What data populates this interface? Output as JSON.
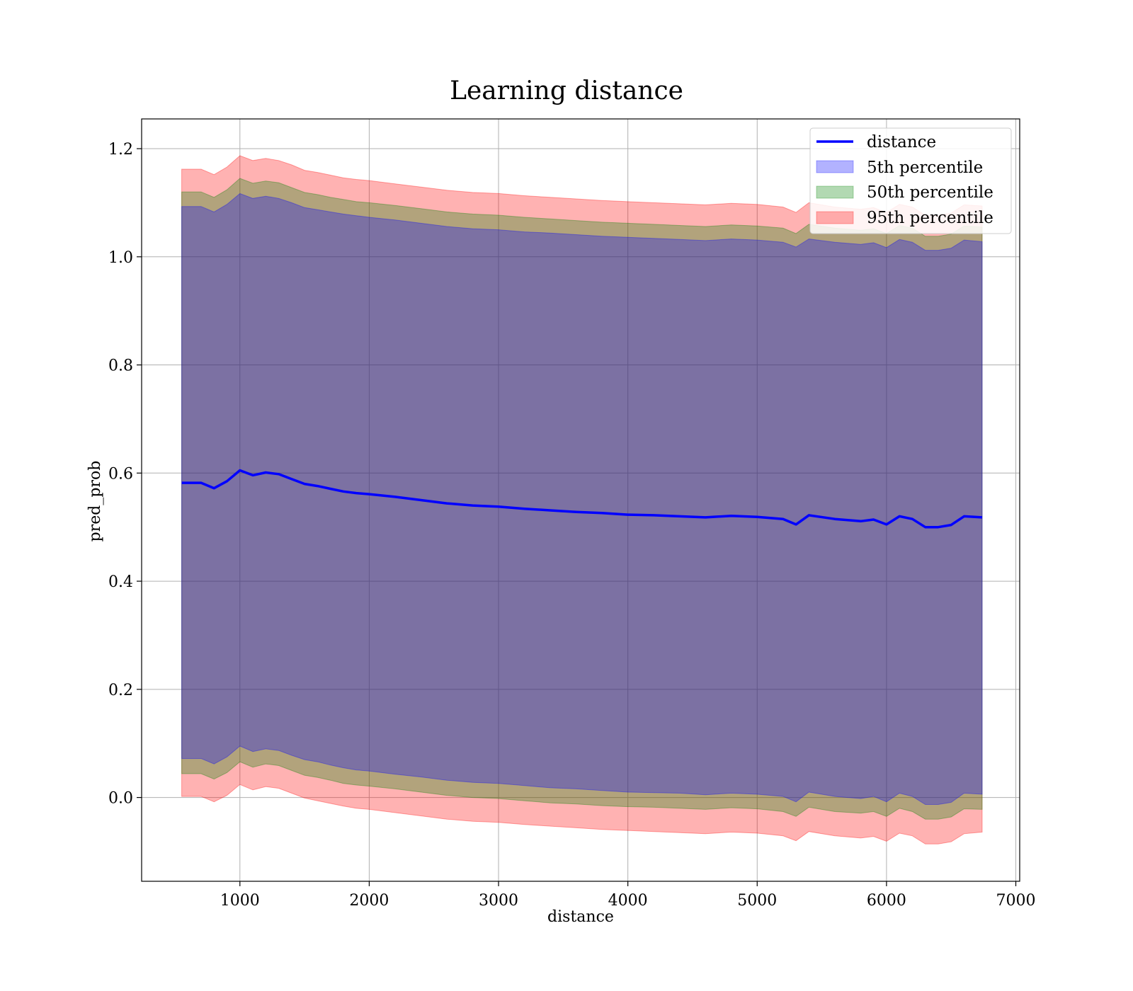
{
  "chart_data": {
    "type": "area",
    "title": "Learning distance",
    "xlabel": "distance",
    "ylabel": "pred_prob",
    "xlim": [
      240,
      7030
    ],
    "ylim": [
      -0.155,
      1.255
    ],
    "x_ticks": [
      1000,
      2000,
      3000,
      4000,
      5000,
      6000,
      7000
    ],
    "x_tick_labels": [
      "1000",
      "2000",
      "3000",
      "4000",
      "5000",
      "6000",
      "7000"
    ],
    "y_ticks": [
      0.0,
      0.2,
      0.4,
      0.6,
      0.8,
      1.0,
      1.2
    ],
    "y_tick_labels": [
      "0.0",
      "0.2",
      "0.4",
      "0.6",
      "0.8",
      "1.0",
      "1.2"
    ],
    "grid": true,
    "legend_position": "top-right",
    "x": [
      550,
      700,
      800,
      900,
      1000,
      1100,
      1200,
      1300,
      1400,
      1500,
      1600,
      1700,
      1800,
      1900,
      2000,
      2200,
      2400,
      2600,
      2800,
      3000,
      3200,
      3400,
      3600,
      3800,
      4000,
      4200,
      4400,
      4600,
      4800,
      5000,
      5200,
      5300,
      5400,
      5600,
      5800,
      5900,
      6000,
      6100,
      6200,
      6300,
      6400,
      6500,
      6600,
      6740
    ],
    "series": [
      {
        "name": "distance",
        "kind": "line",
        "color": "#0000ff",
        "values": [
          0.582,
          0.582,
          0.572,
          0.585,
          0.605,
          0.596,
          0.601,
          0.598,
          0.589,
          0.58,
          0.576,
          0.571,
          0.566,
          0.563,
          0.561,
          0.556,
          0.55,
          0.544,
          0.54,
          0.538,
          0.534,
          0.531,
          0.528,
          0.526,
          0.523,
          0.522,
          0.52,
          0.518,
          0.521,
          0.519,
          0.515,
          0.505,
          0.522,
          0.515,
          0.511,
          0.514,
          0.505,
          0.52,
          0.515,
          0.5,
          0.5,
          0.504,
          0.52,
          0.518
        ]
      },
      {
        "name": "5th percentile",
        "kind": "band",
        "color": "#0000ff",
        "upper": [
          1.093,
          1.093,
          1.083,
          1.097,
          1.117,
          1.108,
          1.112,
          1.108,
          1.1,
          1.091,
          1.087,
          1.083,
          1.079,
          1.076,
          1.073,
          1.068,
          1.062,
          1.056,
          1.052,
          1.05,
          1.046,
          1.044,
          1.041,
          1.038,
          1.036,
          1.034,
          1.032,
          1.03,
          1.033,
          1.031,
          1.027,
          1.018,
          1.033,
          1.027,
          1.023,
          1.026,
          1.017,
          1.032,
          1.027,
          1.012,
          1.012,
          1.016,
          1.031,
          1.028
        ],
        "lower": [
          0.072,
          0.072,
          0.062,
          0.075,
          0.095,
          0.085,
          0.09,
          0.087,
          0.078,
          0.07,
          0.066,
          0.06,
          0.055,
          0.051,
          0.049,
          0.043,
          0.038,
          0.032,
          0.028,
          0.026,
          0.022,
          0.018,
          0.016,
          0.013,
          0.01,
          0.009,
          0.008,
          0.005,
          0.008,
          0.006,
          0.002,
          -0.008,
          0.01,
          0.002,
          -0.002,
          0.002,
          -0.008,
          0.008,
          0.002,
          -0.013,
          -0.013,
          -0.009,
          0.008,
          0.006
        ]
      },
      {
        "name": "50th percentile",
        "kind": "band",
        "color": "#008000",
        "upper": [
          1.12,
          1.12,
          1.11,
          1.124,
          1.145,
          1.136,
          1.14,
          1.137,
          1.128,
          1.119,
          1.115,
          1.11,
          1.106,
          1.102,
          1.1,
          1.095,
          1.089,
          1.083,
          1.079,
          1.077,
          1.073,
          1.07,
          1.067,
          1.064,
          1.062,
          1.06,
          1.058,
          1.056,
          1.059,
          1.057,
          1.053,
          1.043,
          1.06,
          1.053,
          1.049,
          1.052,
          1.043,
          1.058,
          1.053,
          1.038,
          1.038,
          1.042,
          1.057,
          1.055
        ],
        "lower": [
          0.044,
          0.044,
          0.034,
          0.046,
          0.066,
          0.056,
          0.062,
          0.059,
          0.05,
          0.041,
          0.037,
          0.032,
          0.026,
          0.023,
          0.021,
          0.016,
          0.01,
          0.004,
          0.0,
          -0.002,
          -0.006,
          -0.01,
          -0.012,
          -0.015,
          -0.017,
          -0.018,
          -0.02,
          -0.022,
          -0.019,
          -0.021,
          -0.026,
          -0.035,
          -0.018,
          -0.026,
          -0.029,
          -0.026,
          -0.035,
          -0.02,
          -0.026,
          -0.04,
          -0.04,
          -0.036,
          -0.021,
          -0.022
        ]
      },
      {
        "name": "95th percentile",
        "kind": "band",
        "color": "#ff0000",
        "upper": [
          1.162,
          1.162,
          1.152,
          1.166,
          1.187,
          1.178,
          1.182,
          1.178,
          1.17,
          1.16,
          1.156,
          1.151,
          1.146,
          1.143,
          1.141,
          1.135,
          1.129,
          1.123,
          1.119,
          1.117,
          1.113,
          1.11,
          1.107,
          1.104,
          1.102,
          1.1,
          1.098,
          1.096,
          1.099,
          1.097,
          1.092,
          1.082,
          1.1,
          1.092,
          1.088,
          1.091,
          1.082,
          1.097,
          1.092,
          1.077,
          1.077,
          1.081,
          1.096,
          1.094
        ],
        "lower": [
          0.002,
          0.002,
          -0.008,
          0.004,
          0.024,
          0.014,
          0.02,
          0.017,
          0.008,
          -0.001,
          -0.006,
          -0.011,
          -0.016,
          -0.02,
          -0.022,
          -0.028,
          -0.034,
          -0.04,
          -0.044,
          -0.046,
          -0.05,
          -0.053,
          -0.056,
          -0.059,
          -0.061,
          -0.063,
          -0.065,
          -0.067,
          -0.064,
          -0.066,
          -0.071,
          -0.08,
          -0.063,
          -0.071,
          -0.075,
          -0.072,
          -0.081,
          -0.066,
          -0.071,
          -0.086,
          -0.086,
          -0.082,
          -0.067,
          -0.064
        ]
      }
    ],
    "legend": [
      "distance",
      "5th percentile",
      "50th percentile",
      "95th percentile"
    ]
  }
}
